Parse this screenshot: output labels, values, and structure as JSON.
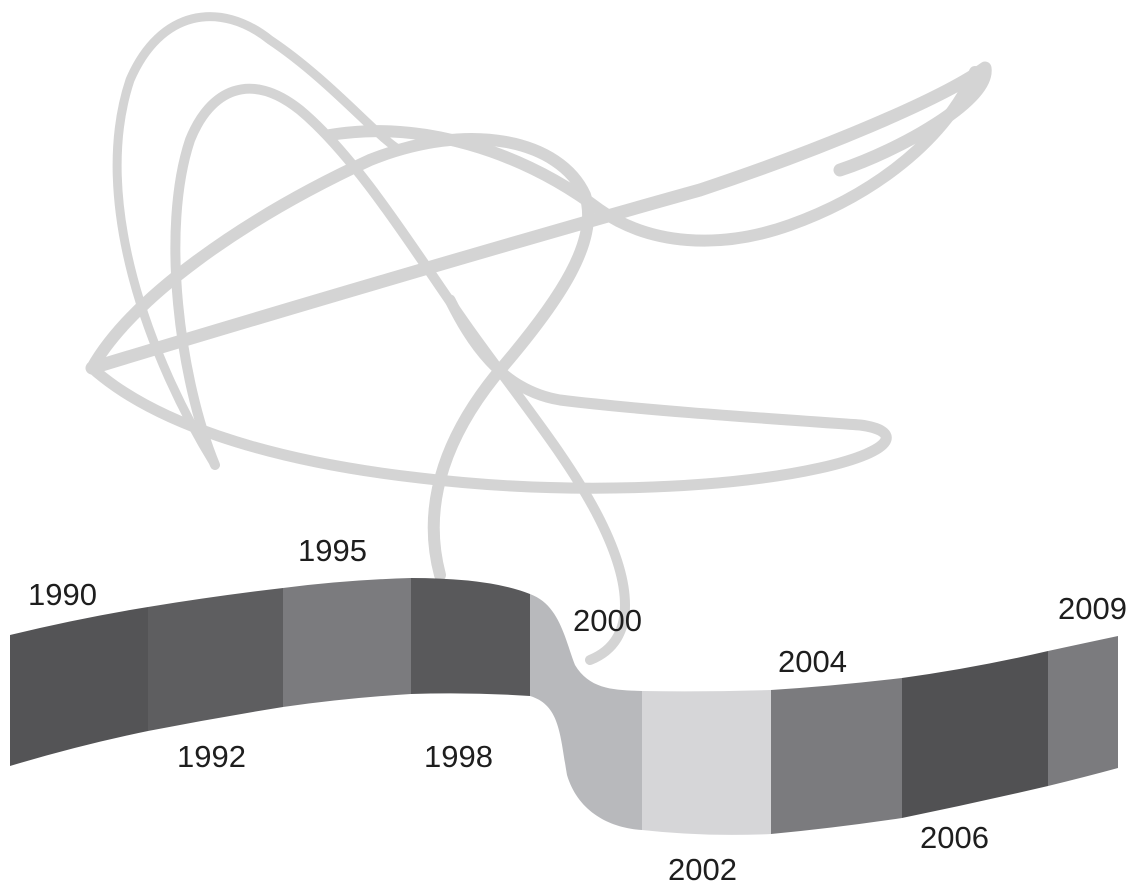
{
  "timeline": {
    "segments": [
      {
        "label": "1990",
        "color": "#545456"
      },
      {
        "label": "1992",
        "color": "#5e5e60"
      },
      {
        "label": "1995",
        "color": "#7b7b7e"
      },
      {
        "label": "1998",
        "color": "#59595b"
      },
      {
        "label": "2000",
        "color": "#b8b9bc"
      },
      {
        "label": "2002",
        "color": "#d6d6d8"
      },
      {
        "label": "2004",
        "color": "#7b7b7e"
      },
      {
        "label": "2006",
        "color": "#515153"
      },
      {
        "label": "2009",
        "color": "#7b7b7e"
      }
    ]
  },
  "decoration": {
    "ribbon_color": "#d4d4d4"
  }
}
